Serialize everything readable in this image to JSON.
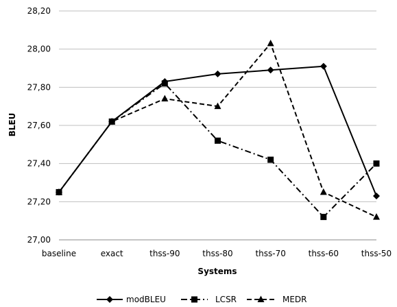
{
  "chart_data": {
    "type": "line",
    "title": "",
    "xlabel": "Systems",
    "ylabel": "BLEU",
    "categories": [
      "baseline",
      "exact",
      "thss-90",
      "thss-80",
      "thss-70",
      "thss-60",
      "thss-50"
    ],
    "ylim": [
      27.0,
      28.2
    ],
    "y_ticks": [
      "27,00",
      "27,20",
      "27,40",
      "27,60",
      "27,80",
      "28,00",
      "28,20"
    ],
    "grid": "horizontal",
    "legend_position": "bottom",
    "series": [
      {
        "name": "modBLEU",
        "line_style": "solid",
        "marker": "diamond",
        "values": [
          27.25,
          27.62,
          27.83,
          27.87,
          27.89,
          27.91,
          27.23
        ]
      },
      {
        "name": "LCSR",
        "line_style": "dash-dot",
        "marker": "square",
        "values": [
          27.25,
          27.62,
          27.82,
          27.52,
          27.42,
          27.12,
          27.4
        ]
      },
      {
        "name": "MEDR",
        "line_style": "dashed",
        "marker": "triangle",
        "values": [
          27.25,
          27.62,
          27.74,
          27.7,
          28.03,
          27.25,
          27.12
        ]
      }
    ]
  }
}
